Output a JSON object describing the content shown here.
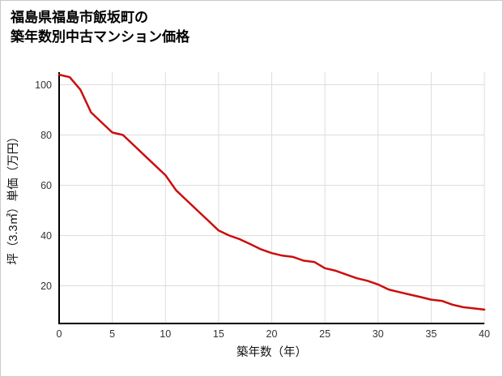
{
  "title": {
    "line1": "福島県福島市飯坂町の",
    "line2": "築年数別中古マンション価格"
  },
  "chart_data": {
    "type": "line",
    "title": "福島県福島市飯坂町の築年数別中古マンション価格",
    "xlabel": "築年数（年）",
    "ylabel": "坪（3.3㎡）単価（万円）",
    "xlim": [
      0,
      40
    ],
    "ylim": [
      5,
      105
    ],
    "x_ticks": [
      0,
      5,
      10,
      15,
      20,
      25,
      30,
      35,
      40
    ],
    "y_ticks": [
      20,
      40,
      60,
      80,
      100
    ],
    "grid": true,
    "legend": "none",
    "x": [
      0,
      1,
      2,
      3,
      4,
      5,
      6,
      7,
      8,
      9,
      10,
      11,
      12,
      13,
      14,
      15,
      16,
      17,
      18,
      19,
      20,
      21,
      22,
      23,
      24,
      25,
      26,
      27,
      28,
      29,
      30,
      31,
      32,
      33,
      34,
      35,
      36,
      37,
      38,
      39,
      40
    ],
    "values": [
      104,
      103,
      98,
      89,
      85,
      81,
      80,
      76,
      72,
      68,
      64,
      58,
      54,
      50,
      46,
      42,
      40,
      38.5,
      36.5,
      34.5,
      33,
      32,
      31.5,
      30,
      29.5,
      27,
      26,
      24.5,
      23,
      22,
      20.5,
      18.5,
      17.5,
      16.5,
      15.5,
      14.5,
      14,
      12.5,
      11.5,
      11,
      10.5
    ],
    "colors": {
      "line": "#cc0d0d",
      "grid": "#dddddd",
      "axis": "#000000",
      "tick_text": "#333333"
    }
  }
}
